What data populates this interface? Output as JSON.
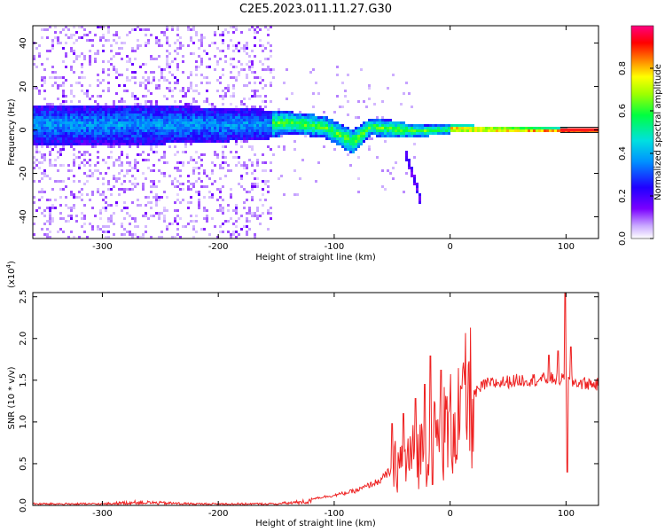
{
  "title": "C2E5.2023.011.11.27.G30",
  "chart_data": [
    {
      "type": "heatmap",
      "xlabel": "Height of straight line (km)",
      "ylabel": "Frequency (Hz)",
      "xlim": [
        -360,
        128
      ],
      "ylim": [
        -50,
        48
      ],
      "x_ticks": [
        -300,
        -200,
        -100,
        0,
        100
      ],
      "y_ticks": [
        -40,
        -20,
        0,
        20,
        40
      ],
      "colorbar": {
        "label": "Normalized spectral amplitude",
        "range": [
          0.0,
          1.0
        ],
        "ticks": [
          "0.0",
          "0.2",
          "0.4",
          "0.6",
          "0.8"
        ],
        "tick_values": [
          0.0,
          0.2,
          0.4,
          0.6,
          0.8
        ]
      },
      "features": {
        "main_band": [
          {
            "x": -355,
            "y": 3,
            "halfwidth": 9
          },
          {
            "x": -250,
            "y": 3,
            "halfwidth": 9
          },
          {
            "x": -160,
            "y": 3,
            "halfwidth": 7
          },
          {
            "x": -140,
            "y": 4,
            "halfwidth": 5
          },
          {
            "x": -110,
            "y": 2,
            "halfwidth": 5
          },
          {
            "x": -95,
            "y": -2,
            "halfwidth": 5
          },
          {
            "x": -85,
            "y": -5,
            "halfwidth": 6
          },
          {
            "x": -70,
            "y": 2,
            "halfwidth": 4
          },
          {
            "x": -50,
            "y": 1,
            "halfwidth": 4
          },
          {
            "x": -30,
            "y": 0,
            "halfwidth": 3
          },
          {
            "x": 0,
            "y": 1,
            "halfwidth": 2
          },
          {
            "x": 128,
            "y": 0,
            "halfwidth": 1
          }
        ],
        "tail_branch": [
          {
            "x": -40,
            "y": -10
          },
          {
            "x": -32,
            "y": -22
          },
          {
            "x": -25,
            "y": -35
          }
        ],
        "noise_region": [
          -360,
          -155
        ]
      }
    },
    {
      "type": "line",
      "xlabel": "Height of straight line (km)",
      "ylabel": "SNR (10 * v/v)",
      "y_multiplier": "(x10",
      "y_multiplier_exp": "4",
      "y_multiplier_close": ")",
      "xlim": [
        -360,
        128
      ],
      "ylim": [
        0.0,
        2.55
      ],
      "x_ticks": [
        -300,
        -200,
        -100,
        0,
        100
      ],
      "y_ticks": [
        0.0,
        0.5,
        1.0,
        1.5,
        2.0,
        2.5
      ],
      "y_tick_labels": [
        "0.0",
        "0.5",
        "1.0",
        "1.5",
        "2.0",
        "2.5"
      ],
      "color": "#ee2222",
      "envelope": [
        {
          "x": -360,
          "y": 0.03
        },
        {
          "x": -300,
          "y": 0.03
        },
        {
          "x": -270,
          "y": 0.06
        },
        {
          "x": -220,
          "y": 0.03
        },
        {
          "x": -150,
          "y": 0.03
        },
        {
          "x": -120,
          "y": 0.08
        },
        {
          "x": -100,
          "y": 0.12
        },
        {
          "x": -80,
          "y": 0.18
        },
        {
          "x": -60,
          "y": 0.3
        },
        {
          "x": -45,
          "y": 0.5
        },
        {
          "x": -30,
          "y": 0.6
        },
        {
          "x": -15,
          "y": 0.75
        },
        {
          "x": 0,
          "y": 0.95
        },
        {
          "x": 15,
          "y": 1.25
        },
        {
          "x": 30,
          "y": 1.45
        },
        {
          "x": 60,
          "y": 1.5
        },
        {
          "x": 90,
          "y": 1.52
        },
        {
          "x": 110,
          "y": 1.47
        },
        {
          "x": 128,
          "y": 1.45
        }
      ],
      "spikes": [
        {
          "x": -50,
          "y": 0.98
        },
        {
          "x": -40,
          "y": 1.1
        },
        {
          "x": -30,
          "y": 1.28
        },
        {
          "x": -22,
          "y": 1.45
        },
        {
          "x": -17,
          "y": 1.79
        },
        {
          "x": -8,
          "y": 1.62
        },
        {
          "x": 10,
          "y": 1.4
        },
        {
          "x": 85,
          "y": 1.8
        },
        {
          "x": 93,
          "y": 1.85
        },
        {
          "x": 99,
          "y": 2.55
        },
        {
          "x": 101,
          "y": 0.4
        },
        {
          "x": 104,
          "y": 1.9
        }
      ]
    }
  ]
}
